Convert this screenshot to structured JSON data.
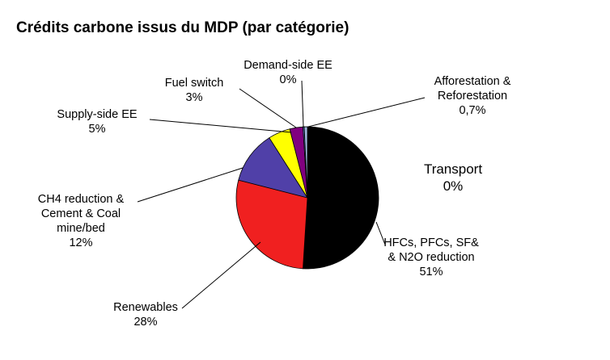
{
  "chart_data": {
    "type": "pie",
    "title": "Crédits carbone issus du MDP (par catégorie)",
    "slices": [
      {
        "lines": [
          "HFCs, PFCs, SF&",
          "& N2O reduction",
          "51%"
        ],
        "value": 51,
        "color": "#000000"
      },
      {
        "lines": [
          "Renewables",
          "28%"
        ],
        "value": 28,
        "color": "#f02020"
      },
      {
        "lines": [
          "CH4 reduction &",
          "Cement & Coal",
          "mine/bed",
          "12%"
        ],
        "value": 12,
        "color": "#5040a8"
      },
      {
        "lines": [
          "Supply-side EE",
          "5%"
        ],
        "value": 5,
        "color": "#ffff00"
      },
      {
        "lines": [
          "Fuel switch",
          "3%"
        ],
        "value": 3,
        "color": "#800080"
      },
      {
        "lines": [
          "Demand-side EE",
          "0%"
        ],
        "value": 0.3,
        "color": "#4a7fc0"
      },
      {
        "lines": [
          "Afforestation &",
          "Reforestation",
          "0,7%"
        ],
        "value": 0.7,
        "color": "#a0b8e0"
      },
      {
        "lines": [
          "Transport",
          "0%"
        ],
        "value": 0,
        "color": "#ffffff"
      }
    ]
  }
}
